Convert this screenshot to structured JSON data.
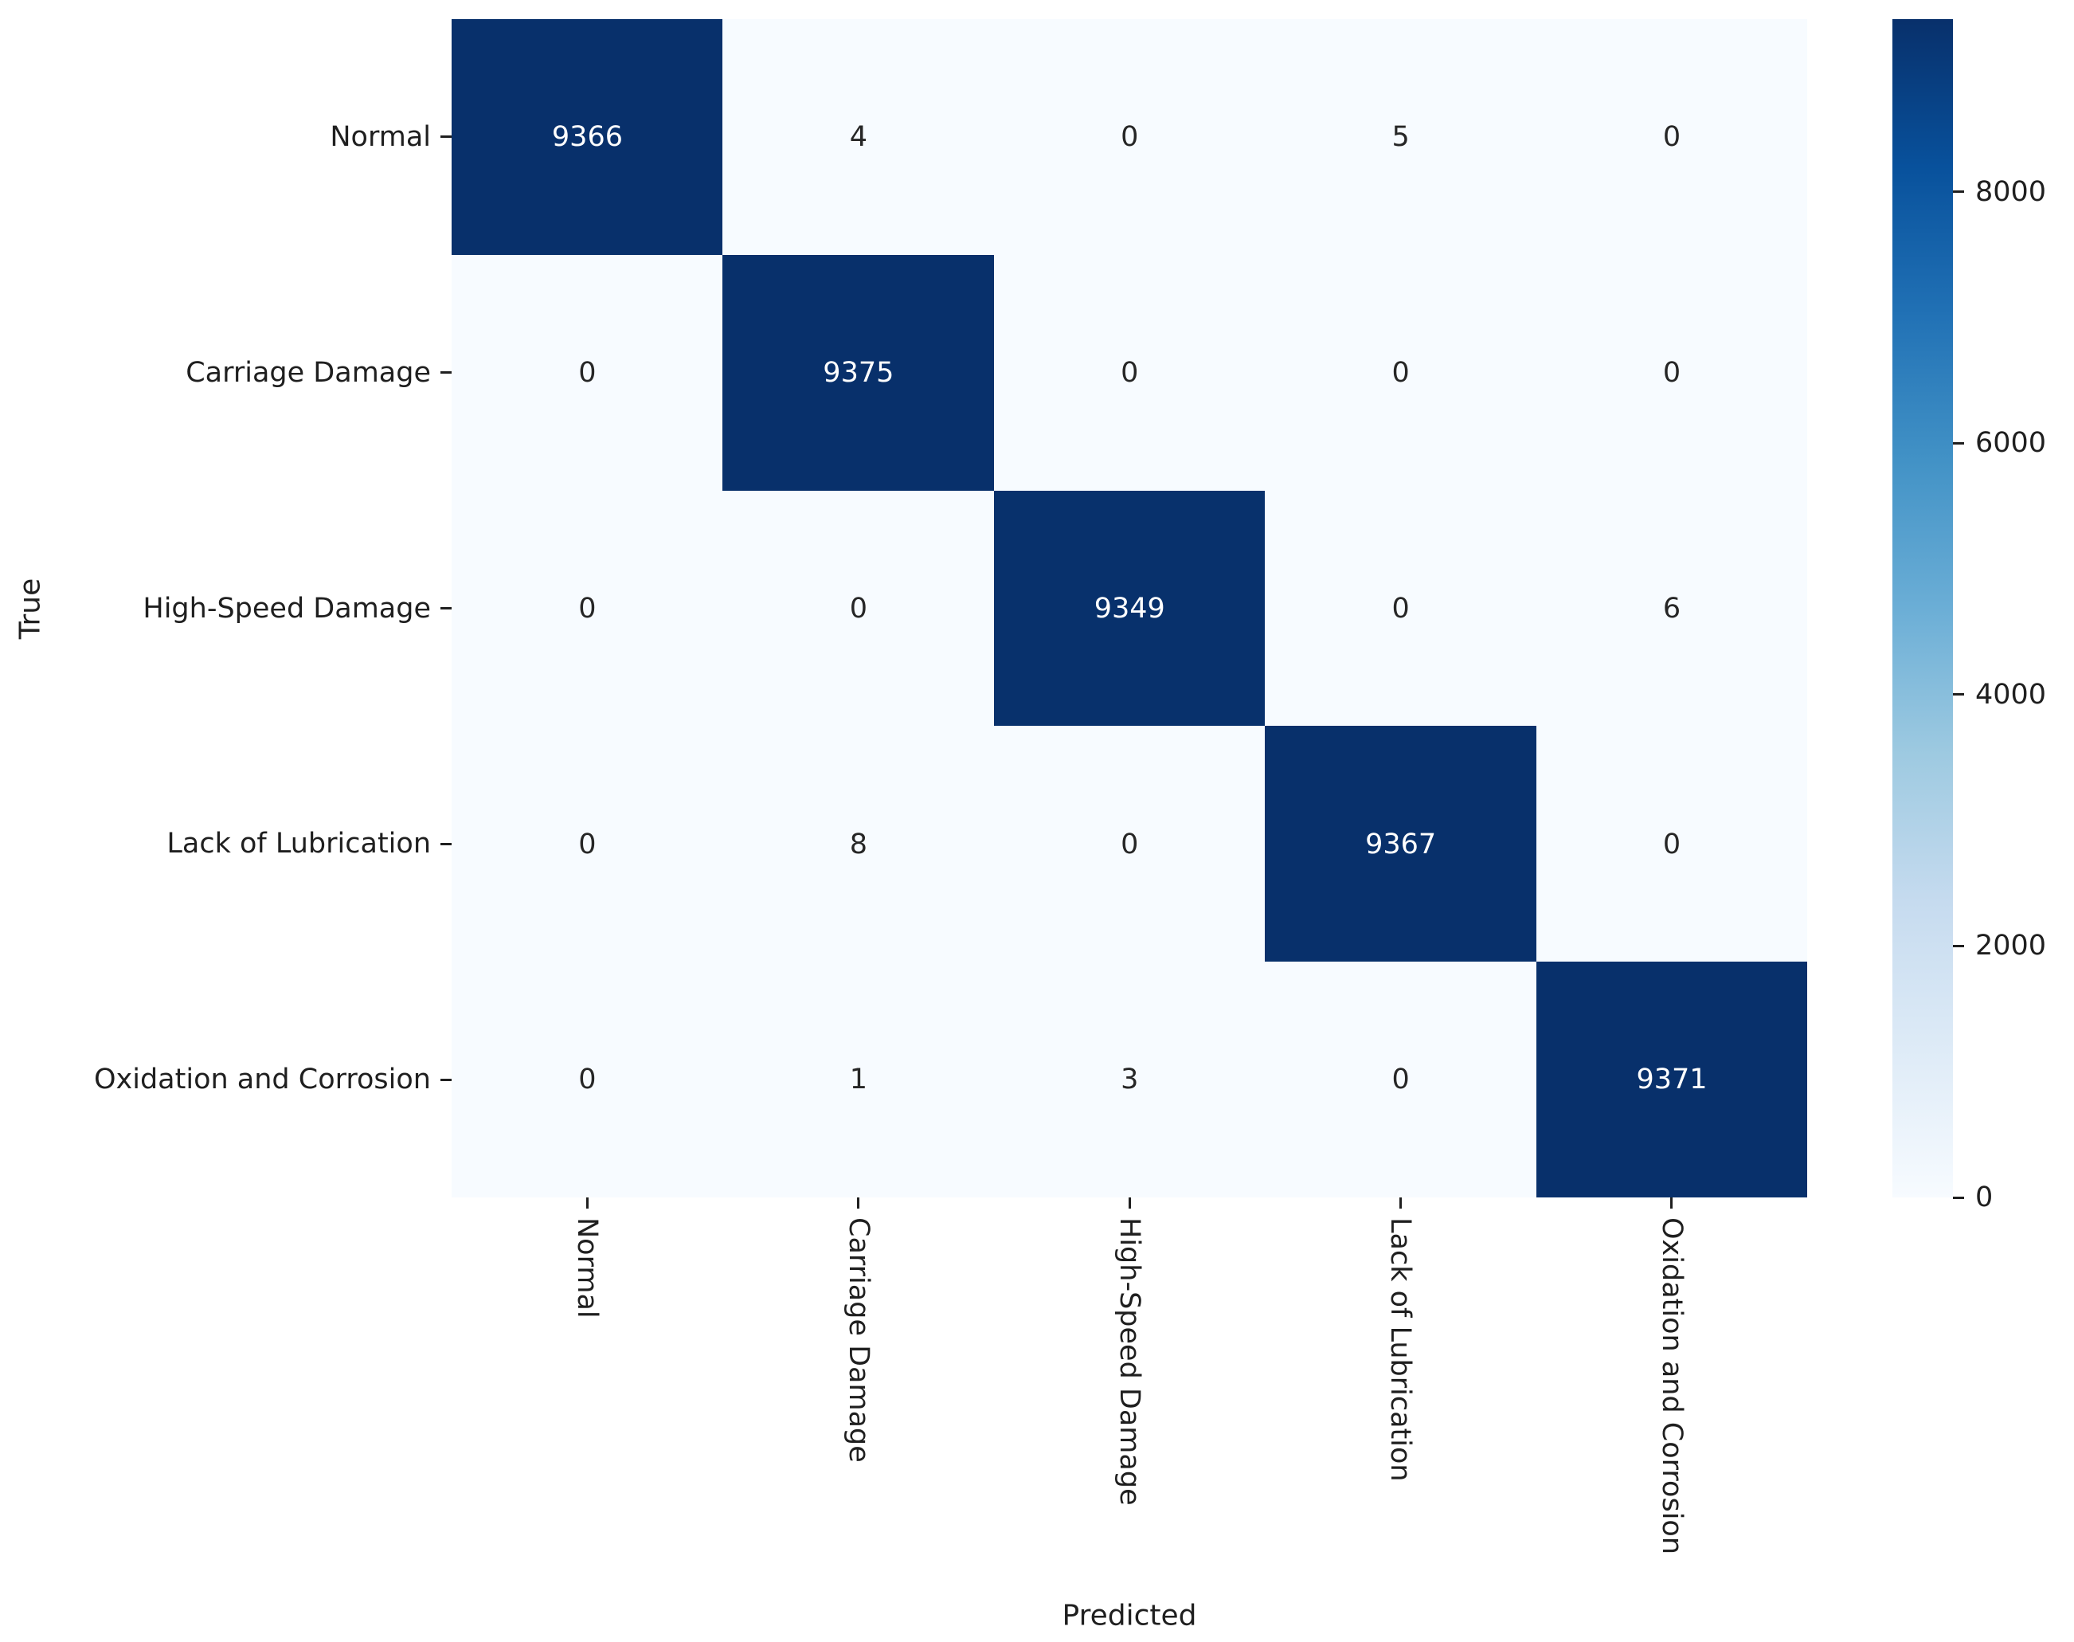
{
  "chart_data": {
    "type": "heatmap",
    "title": "",
    "xlabel": "Predicted",
    "ylabel": "True",
    "categories": [
      "Normal",
      "Carriage Damage",
      "High-Speed Damage",
      "Lack of Lubrication",
      "Oxidation and Corrosion"
    ],
    "matrix": [
      [
        9366,
        4,
        0,
        5,
        0
      ],
      [
        0,
        9375,
        0,
        0,
        0
      ],
      [
        0,
        0,
        9349,
        0,
        6
      ],
      [
        0,
        8,
        0,
        9367,
        0
      ],
      [
        0,
        1,
        3,
        0,
        9371
      ]
    ],
    "vmin": 0,
    "vmax": 9375,
    "colorbar_ticks": [
      0,
      2000,
      4000,
      6000,
      8000
    ],
    "legend_position": "right",
    "grid": false,
    "colormap": "Blues",
    "colormap_stops": [
      [
        0.0,
        "#f7fbff"
      ],
      [
        0.125,
        "#deebf7"
      ],
      [
        0.25,
        "#c6dbef"
      ],
      [
        0.375,
        "#9ecae1"
      ],
      [
        0.5,
        "#6baed6"
      ],
      [
        0.625,
        "#4292c6"
      ],
      [
        0.75,
        "#2171b5"
      ],
      [
        0.875,
        "#08519c"
      ],
      [
        1.0,
        "#08306b"
      ]
    ],
    "colors": {
      "annotation_on_light": "#262626",
      "annotation_on_dark": "#ffffff",
      "tick_text": "#1f1f1f",
      "background": "#ffffff"
    }
  }
}
